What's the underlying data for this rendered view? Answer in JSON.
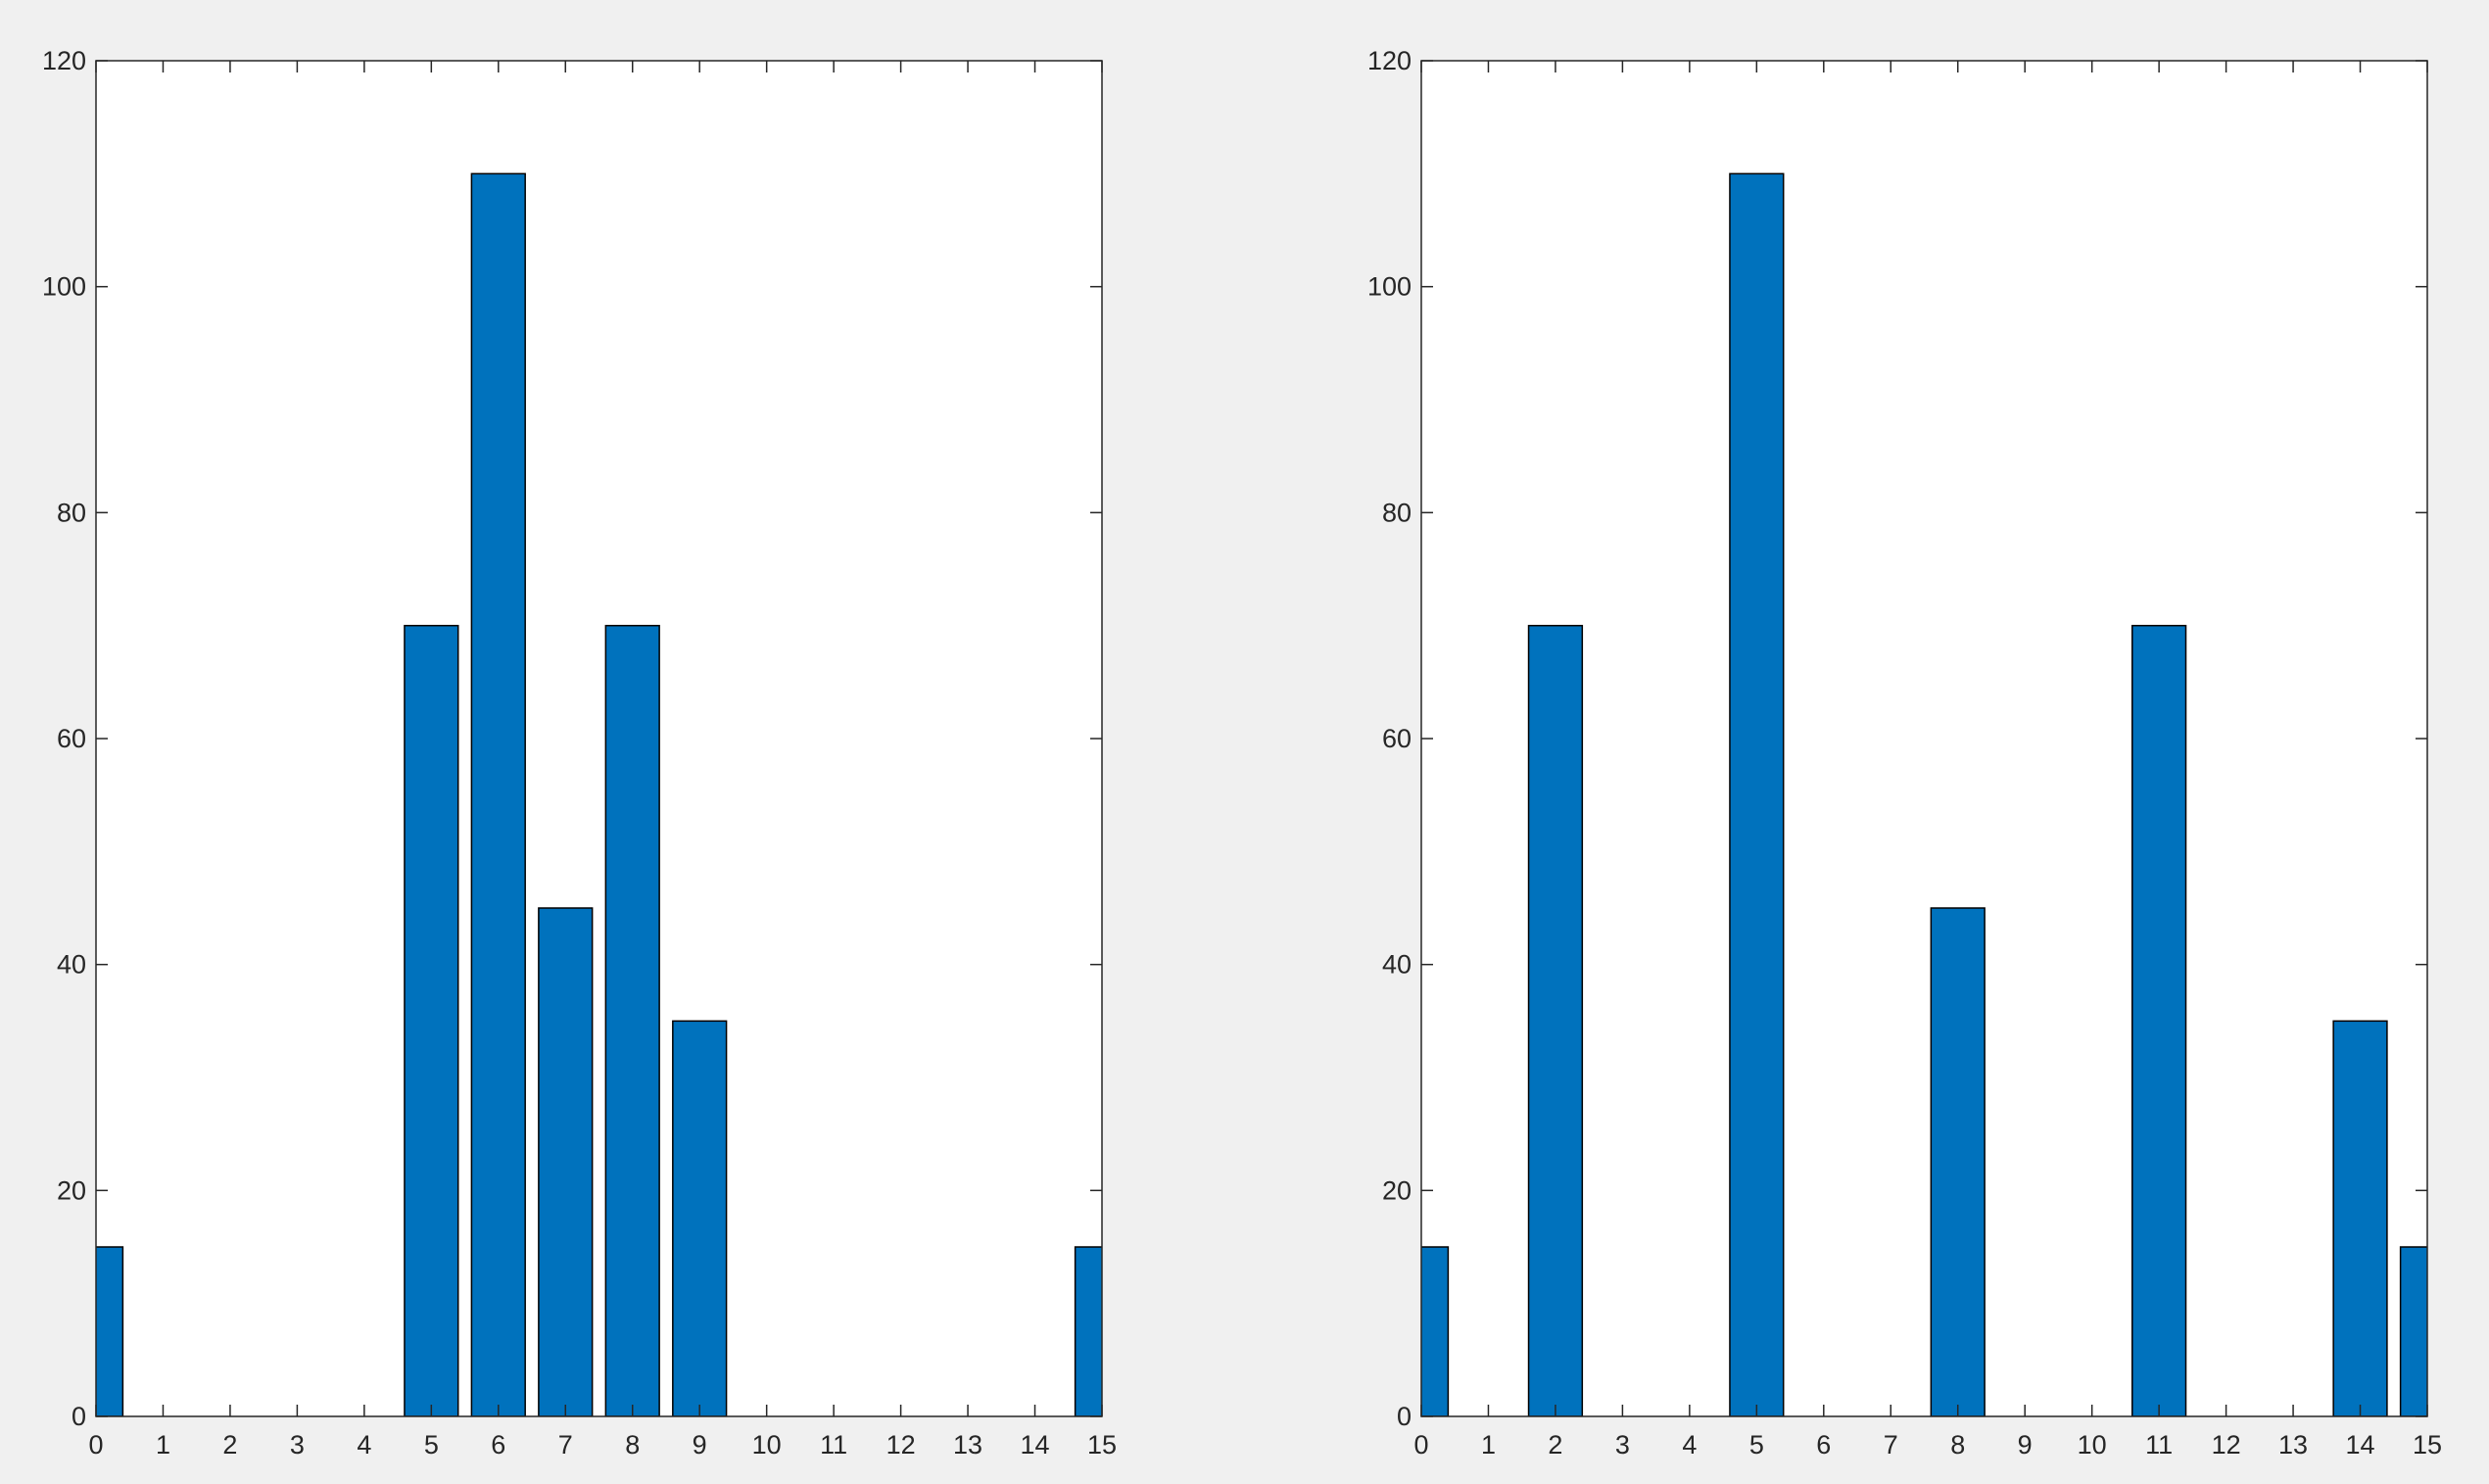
{
  "chart_data": [
    {
      "type": "bar",
      "title": "",
      "xlabel": "",
      "ylabel": "",
      "xlim": [
        0,
        15
      ],
      "ylim": [
        0,
        120
      ],
      "xticks": [
        0,
        1,
        2,
        3,
        4,
        5,
        6,
        7,
        8,
        9,
        10,
        11,
        12,
        13,
        14,
        15
      ],
      "yticks": [
        0,
        20,
        40,
        60,
        80,
        100,
        120
      ],
      "categories": [
        0,
        1,
        2,
        3,
        4,
        5,
        6,
        7,
        8,
        9,
        10,
        11,
        12,
        13,
        14,
        15
      ],
      "values": [
        15,
        0,
        0,
        0,
        0,
        70,
        110,
        45,
        70,
        35,
        0,
        0,
        0,
        0,
        0,
        15
      ],
      "bar_color": "#0072BD",
      "grid": false
    },
    {
      "type": "bar",
      "title": "",
      "xlabel": "",
      "ylabel": "",
      "xlim": [
        0,
        15
      ],
      "ylim": [
        0,
        120
      ],
      "xticks": [
        0,
        1,
        2,
        3,
        4,
        5,
        6,
        7,
        8,
        9,
        10,
        11,
        12,
        13,
        14,
        15
      ],
      "yticks": [
        0,
        20,
        40,
        60,
        80,
        100,
        120
      ],
      "categories": [
        0,
        1,
        2,
        3,
        4,
        5,
        6,
        7,
        8,
        9,
        10,
        11,
        12,
        13,
        14,
        15
      ],
      "values": [
        15,
        0,
        70,
        0,
        0,
        110,
        0,
        0,
        45,
        0,
        0,
        70,
        0,
        0,
        35,
        15
      ],
      "bar_color": "#0072BD",
      "grid": false
    }
  ]
}
